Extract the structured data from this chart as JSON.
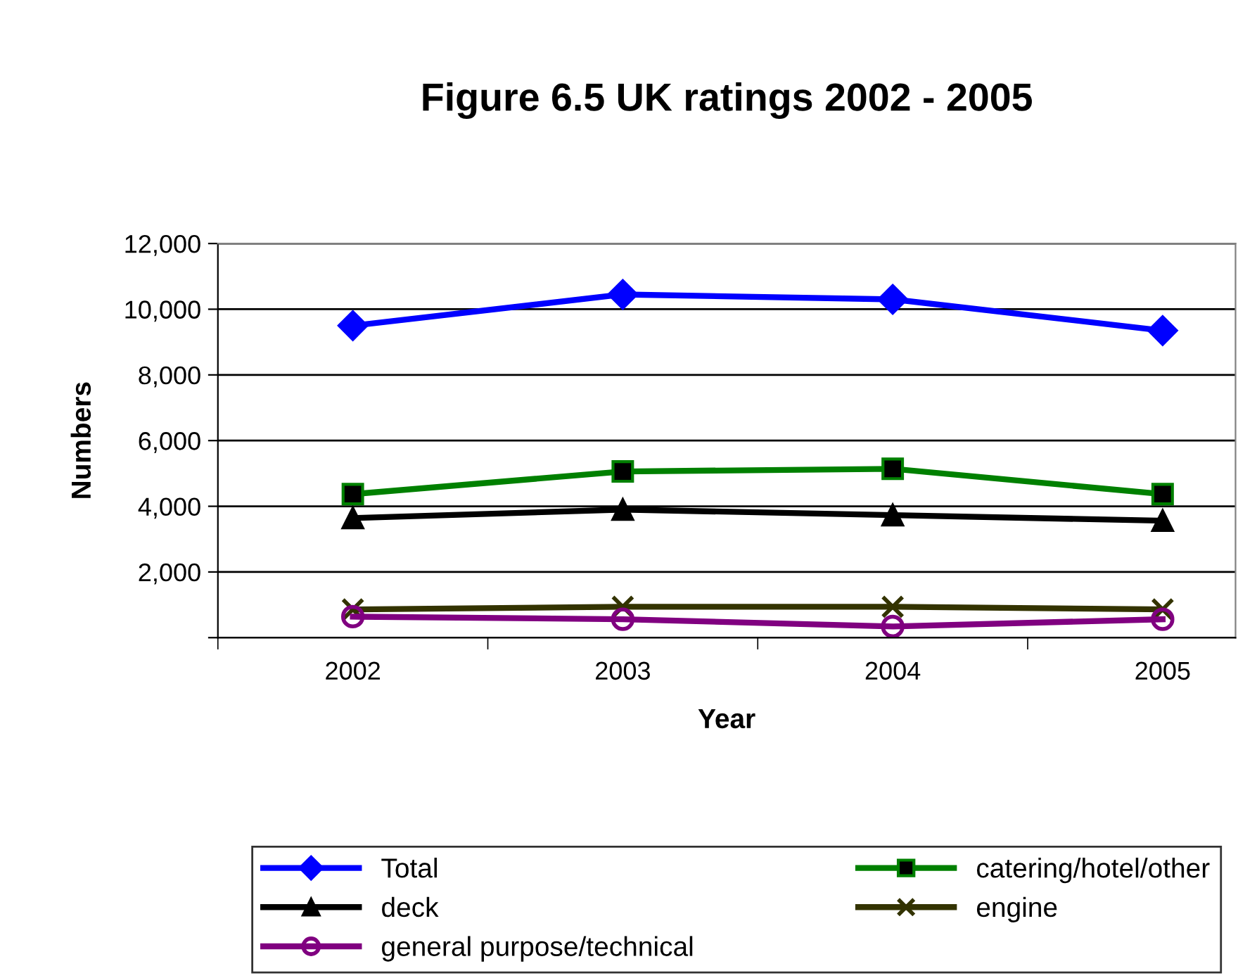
{
  "chart_data": {
    "type": "line",
    "title": "Figure 6.5 UK ratings 2002 - 2005",
    "xlabel": "Year",
    "ylabel": "Numbers",
    "categories": [
      "2002",
      "2003",
      "2004",
      "2005"
    ],
    "series": [
      {
        "name": "Total",
        "color": "#0000ff",
        "marker": "diamond",
        "values": [
          9500,
          10450,
          10300,
          9350
        ]
      },
      {
        "name": "catering/hotel/other",
        "color": "#008000",
        "marker": "square",
        "values": [
          4370,
          5060,
          5140,
          4370
        ]
      },
      {
        "name": "deck",
        "color": "#000000",
        "marker": "triangle",
        "values": [
          3640,
          3900,
          3730,
          3560
        ]
      },
      {
        "name": "engine",
        "color": "#333300",
        "marker": "cross",
        "values": [
          860,
          940,
          940,
          860
        ]
      },
      {
        "name": "general purpose/technical",
        "color": "#800080",
        "marker": "circle",
        "values": [
          640,
          560,
          340,
          560
        ]
      }
    ],
    "ylim": [
      0,
      12000
    ],
    "yticks": [
      {
        "value": 0,
        "label": null
      },
      {
        "value": 2000,
        "label": "2,000"
      },
      {
        "value": 4000,
        "label": "4,000"
      },
      {
        "value": 6000,
        "label": "6,000"
      },
      {
        "value": 8000,
        "label": "8,000"
      },
      {
        "value": 10000,
        "label": "10,000"
      },
      {
        "value": 12000,
        "label": "12,000"
      }
    ],
    "grid": "y",
    "legend": "bottom",
    "line_style": "solid"
  }
}
